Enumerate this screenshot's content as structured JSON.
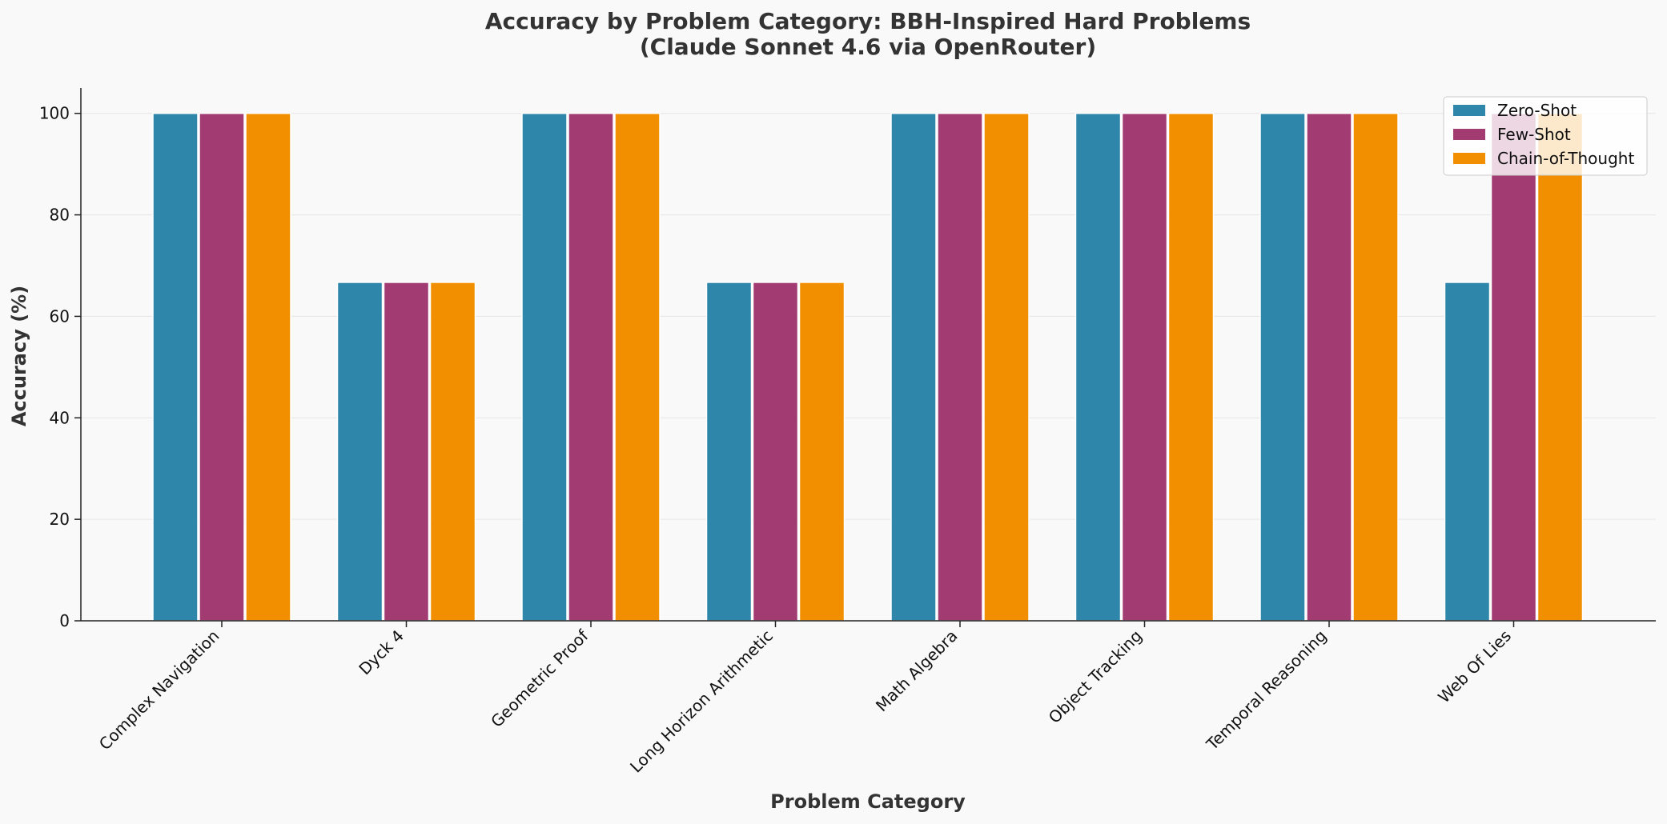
{
  "chart_data": {
    "type": "bar",
    "title": "Accuracy by Problem Category: BBH-Inspired Hard Problems",
    "subtitle": "(Claude Sonnet 4.6 via OpenRouter)",
    "xlabel": "Problem Category",
    "ylabel": "Accuracy (%)",
    "ylim": [
      0,
      105
    ],
    "yticks": [
      0,
      20,
      40,
      60,
      80,
      100
    ],
    "grid": true,
    "legend_position": "top-right",
    "categories": [
      "Complex Navigation",
      "Dyck 4",
      "Geometric Proof",
      "Long Horizon Arithmetic",
      "Math Algebra",
      "Object Tracking",
      "Temporal Reasoning",
      "Web Of Lies"
    ],
    "series": [
      {
        "name": "Zero-Shot",
        "color": "#2e86ab",
        "values": [
          100,
          66.7,
          100,
          66.7,
          100,
          100,
          100,
          66.7
        ]
      },
      {
        "name": "Few-Shot",
        "color": "#a23b72",
        "values": [
          100,
          66.7,
          100,
          66.7,
          100,
          100,
          100,
          100
        ]
      },
      {
        "name": "Chain-of-Thought",
        "color": "#f18f01",
        "values": [
          100,
          66.7,
          100,
          66.7,
          100,
          100,
          100,
          100
        ]
      }
    ]
  }
}
